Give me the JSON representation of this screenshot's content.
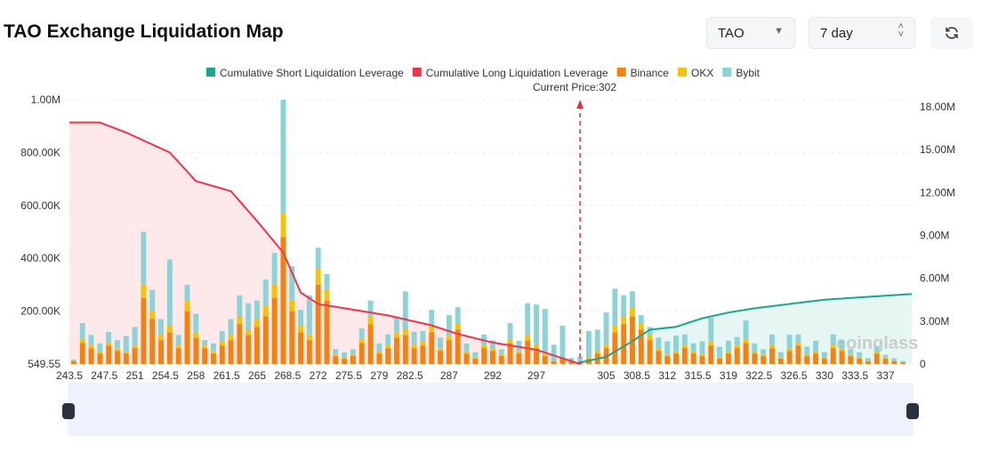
{
  "header": {
    "title": "TAO Exchange Liquidation Map",
    "symbol": "TAO",
    "period": "7 day",
    "refresh_icon": "refresh-icon"
  },
  "watermark": "coinglass",
  "chart_data": {
    "type": "bar",
    "legend": [
      "Cumulative Short Liquidation Leverage",
      "Cumulative Long Liquidation Leverage",
      "Binance",
      "OKX",
      "Bybit"
    ],
    "legend_placement": "top",
    "colors": {
      "short": "#1aa68a",
      "long": "#f0344a",
      "binance": "#f7810c",
      "okx": "#f8c10a",
      "bybit": "#8ad3d8",
      "long_fill": "#fde8ea",
      "short_fill": "#e6f6f2"
    },
    "current_price_label": "Current Price:302",
    "current_price": 302,
    "xlim": [
      243.5,
      340
    ],
    "x_ticks": [
      "243.5",
      "247.5",
      "251",
      "254.5",
      "258",
      "261.5",
      "265",
      "268.5",
      "272",
      "275.5",
      "279",
      "282.5",
      "287",
      "292",
      "297",
      "305",
      "308.5",
      "312",
      "315.5",
      "319",
      "322.5",
      "326.5",
      "330",
      "333.5",
      "337"
    ],
    "y_left_ticks": [
      "549.55",
      "200.00K",
      "400.00K",
      "600.00K",
      "800.00K",
      "1.00M"
    ],
    "y_left_lim": [
      0,
      1000000
    ],
    "y_right_ticks": [
      "0",
      "3.00M",
      "6.00M",
      "9.00M",
      "12.00M",
      "15.00M",
      "18.00M"
    ],
    "y_right_lim": [
      0,
      18000000
    ],
    "prices_start": 244,
    "price_step": 1,
    "binance": [
      10,
      80,
      60,
      40,
      70,
      50,
      40,
      60,
      250,
      170,
      90,
      120,
      60,
      200,
      100,
      60,
      40,
      70,
      90,
      150,
      110,
      140,
      180,
      250,
      480,
      200,
      120,
      90,
      300,
      240,
      30,
      20,
      30,
      80,
      150,
      40,
      60,
      100,
      110,
      60,
      70,
      120,
      50,
      90,
      130,
      40,
      20,
      60,
      50,
      30,
      80,
      40,
      90,
      60,
      30,
      10,
      20,
      10,
      5,
      20,
      40,
      60,
      120,
      150,
      180,
      130,
      90,
      50,
      30,
      40,
      60,
      40,
      30,
      70,
      20,
      40,
      60,
      80,
      40,
      30,
      60,
      20,
      50,
      70,
      30,
      40,
      20,
      60,
      50,
      30,
      20,
      10,
      40,
      20,
      10,
      5
    ],
    "okx": [
      2,
      15,
      10,
      8,
      12,
      10,
      6,
      10,
      50,
      30,
      20,
      25,
      10,
      40,
      20,
      10,
      8,
      15,
      20,
      30,
      20,
      30,
      40,
      50,
      90,
      40,
      25,
      20,
      60,
      40,
      6,
      4,
      6,
      15,
      30,
      8,
      12,
      20,
      25,
      12,
      15,
      25,
      10,
      15,
      25,
      8,
      4,
      12,
      10,
      6,
      15,
      8,
      20,
      15,
      8,
      3,
      5,
      3,
      2,
      5,
      10,
      15,
      25,
      30,
      35,
      25,
      20,
      10,
      6,
      8,
      12,
      8,
      6,
      15,
      5,
      8,
      12,
      15,
      8,
      6,
      12,
      5,
      10,
      12,
      6,
      8,
      5,
      12,
      10,
      6,
      5,
      2,
      8,
      5,
      2,
      1
    ],
    "bybit": [
      5,
      60,
      40,
      30,
      40,
      30,
      60,
      70,
      200,
      80,
      60,
      250,
      40,
      60,
      70,
      20,
      30,
      40,
      60,
      80,
      100,
      70,
      100,
      120,
      430,
      130,
      60,
      150,
      80,
      60,
      20,
      20,
      20,
      40,
      60,
      30,
      40,
      60,
      140,
      50,
      40,
      60,
      40,
      80,
      60,
      30,
      20,
      40,
      30,
      20,
      60,
      40,
      120,
      150,
      170,
      60,
      120,
      10,
      20,
      100,
      80,
      120,
      140,
      80,
      60,
      30,
      30,
      40,
      50,
      60,
      40,
      30,
      50,
      90,
      40,
      40,
      30,
      70,
      30,
      20,
      40,
      20,
      50,
      30,
      30,
      40,
      20,
      40,
      30,
      20,
      20,
      10,
      20,
      10,
      10,
      5
    ],
    "long_cumulative": {
      "x": [
        243.5,
        247,
        250,
        255,
        258,
        262,
        265,
        268,
        270,
        272,
        275,
        280,
        285,
        288,
        292,
        297,
        300,
        302
      ],
      "y": [
        16900000,
        16900000,
        16200000,
        14800000,
        12800000,
        12100000,
        10000000,
        7800000,
        5000000,
        4200000,
        3900000,
        3400000,
        2700000,
        2100000,
        1500000,
        1000000,
        400000,
        0
      ]
    },
    "short_cumulative": {
      "x": [
        302,
        305,
        308,
        310,
        313,
        316,
        319,
        322,
        326,
        330,
        335,
        340
      ],
      "y": [
        100000,
        500000,
        1600000,
        2400000,
        2600000,
        3200000,
        3600000,
        3900000,
        4200000,
        4500000,
        4700000,
        4900000
      ]
    }
  }
}
